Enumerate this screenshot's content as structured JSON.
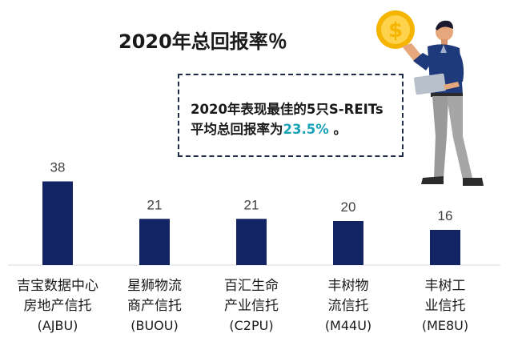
{
  "title": "2020年总回报率％",
  "note": {
    "line1": "2020年表现最佳的5只S-REITs",
    "line2_prefix": "平均总回报率为",
    "line2_value": "23.5%",
    "line2_suffix": " 。"
  },
  "colors": {
    "bar": "#132465",
    "highlight": "#1aa3b8",
    "coin": "#f5b400"
  },
  "illustration": {
    "coin_symbol": "$",
    "icon": "person-with-coin-and-laptop-icon"
  },
  "chart_data": {
    "type": "bar",
    "categories": [
      [
        "吉宝数据中心",
        "房地产信托",
        "(AJBU)"
      ],
      [
        "星狮物流",
        "商产信托",
        "(BUOU)"
      ],
      [
        "百汇生命",
        "产业信托",
        "(C2PU)"
      ],
      [
        "丰树物",
        "流信托",
        "(M44U)"
      ],
      [
        "丰树工",
        "业信托",
        "(ME8U)"
      ]
    ],
    "values": [
      38,
      21,
      21,
      20,
      16
    ],
    "ylim": [
      0,
      40
    ],
    "title": "2020年总回报率％",
    "xlabel": "",
    "ylabel": "",
    "grid": false,
    "legend": "none"
  }
}
